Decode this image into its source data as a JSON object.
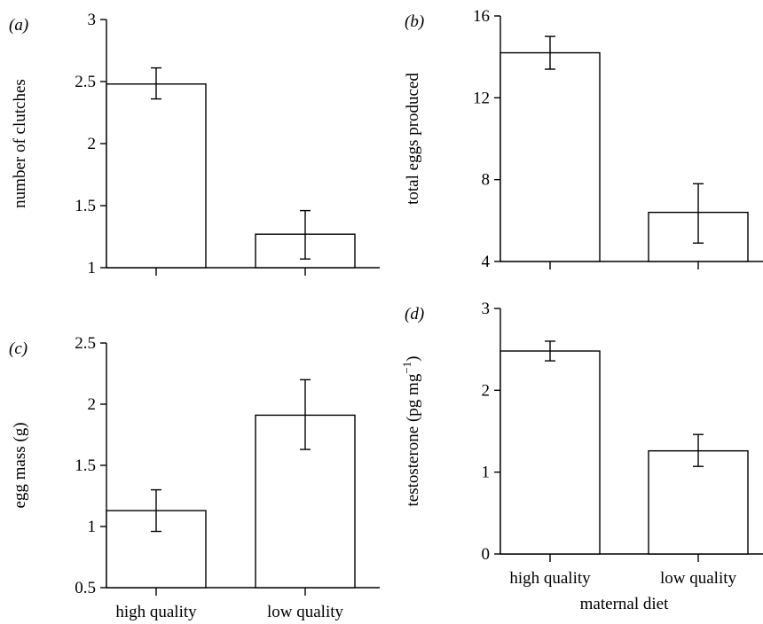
{
  "chart_data": [
    {
      "type": "bar",
      "panel": "(a)",
      "categories": [
        "high quality",
        "low quality"
      ],
      "values": [
        2.48,
        1.27
      ],
      "error_low": [
        2.36,
        1.07
      ],
      "error_high": [
        2.61,
        1.46
      ],
      "ylabel": "number of clutches",
      "xlabel": "",
      "ylim": [
        1,
        3
      ],
      "yticks": [
        1,
        1.5,
        2,
        2.5,
        3
      ],
      "ytick_labels": [
        "1",
        "1.5",
        "2",
        "2.5",
        "3"
      ],
      "show_category_labels": false
    },
    {
      "type": "bar",
      "panel": "(b)",
      "categories": [
        "high quality",
        "low quality"
      ],
      "values": [
        14.2,
        6.4
      ],
      "error_low": [
        13.4,
        4.9
      ],
      "error_high": [
        15.0,
        7.8
      ],
      "ylabel": "total eggs produced",
      "xlabel": "",
      "ylim": [
        4,
        16
      ],
      "yticks": [
        4,
        8,
        12,
        16
      ],
      "ytick_labels": [
        "4",
        "8",
        "12",
        "16"
      ],
      "show_category_labels": false
    },
    {
      "type": "bar",
      "panel": "(c)",
      "categories": [
        "high quality",
        "low quality"
      ],
      "values": [
        1.13,
        1.91
      ],
      "error_low": [
        0.96,
        1.63
      ],
      "error_high": [
        1.3,
        2.2
      ],
      "ylabel": "egg mass (g)",
      "xlabel": "maternal diet",
      "ylim": [
        0.5,
        2.5
      ],
      "yticks": [
        0.5,
        1,
        1.5,
        2,
        2.5
      ],
      "ytick_labels": [
        "0.5",
        "1",
        "1.5",
        "2",
        "2.5"
      ],
      "show_category_labels": true
    },
    {
      "type": "bar",
      "panel": "(d)",
      "categories": [
        "high quality",
        "low quality"
      ],
      "values": [
        2.48,
        1.26
      ],
      "error_low": [
        2.36,
        1.07
      ],
      "error_high": [
        2.6,
        1.46
      ],
      "ylabel": "testosterone (pg mg",
      "ylabel_superscript": "−1",
      "ylabel_suffix": ")",
      "xlabel": "maternal diet",
      "ylim": [
        0,
        3
      ],
      "yticks": [
        0,
        1,
        2,
        3
      ],
      "ytick_labels": [
        "0",
        "1",
        "2",
        "3"
      ],
      "show_category_labels": true
    }
  ]
}
